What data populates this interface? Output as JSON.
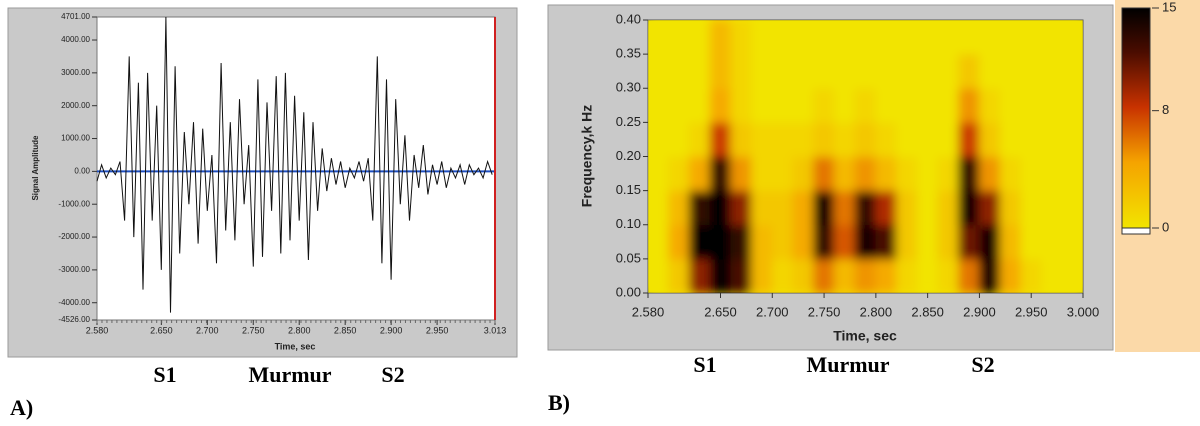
{
  "chart_data": [
    {
      "type": "line",
      "panel_label": "A)",
      "xlabel": "Time, sec",
      "ylabel": "Signal Amplitude",
      "annotations": [
        "S1",
        "Murmur",
        "S2"
      ],
      "color": "#111111",
      "zero_line_color": "#1f4fc0",
      "grid": false,
      "xlim": [
        2.58,
        3.013
      ],
      "xticks": [
        {
          "value": 2.58,
          "label": "2.580"
        },
        {
          "value": 2.65,
          "label": "2.650"
        },
        {
          "value": 2.7,
          "label": "2.700"
        },
        {
          "value": 2.75,
          "label": "2.750"
        },
        {
          "value": 2.8,
          "label": "2.800"
        },
        {
          "value": 2.85,
          "label": "2.850"
        },
        {
          "value": 2.9,
          "label": "2.900"
        },
        {
          "value": 2.95,
          "label": "2.950"
        },
        3.013
      ],
      "ylim": [
        -4526,
        4701
      ],
      "yticks": [
        {
          "value": 4701,
          "label": "4701.00"
        },
        {
          "value": 4000,
          "label": "4000.00"
        },
        {
          "value": 3000,
          "label": "3000.00"
        },
        {
          "value": 2000,
          "label": "2000.00"
        },
        {
          "value": 1000,
          "label": "1000.00"
        },
        {
          "value": 0,
          "label": "0.00"
        },
        {
          "value": -1000,
          "label": "-1000.00"
        },
        {
          "value": -2000,
          "label": "-2000.00"
        },
        {
          "value": -3000,
          "label": "-3000.00"
        },
        {
          "value": -4000,
          "label": "-4000.00"
        },
        {
          "value": -4526,
          "label": "-4526.00"
        }
      ],
      "x": [
        2.58,
        2.585,
        2.59,
        2.595,
        2.6,
        2.605,
        2.61,
        2.615,
        2.62,
        2.625,
        2.63,
        2.635,
        2.64,
        2.645,
        2.65,
        2.655,
        2.66,
        2.665,
        2.67,
        2.675,
        2.68,
        2.685,
        2.69,
        2.695,
        2.7,
        2.705,
        2.71,
        2.715,
        2.72,
        2.725,
        2.73,
        2.735,
        2.74,
        2.745,
        2.75,
        2.755,
        2.76,
        2.765,
        2.77,
        2.775,
        2.78,
        2.785,
        2.79,
        2.795,
        2.8,
        2.805,
        2.81,
        2.815,
        2.82,
        2.825,
        2.83,
        2.835,
        2.84,
        2.845,
        2.85,
        2.855,
        2.86,
        2.865,
        2.87,
        2.875,
        2.88,
        2.885,
        2.89,
        2.895,
        2.9,
        2.905,
        2.91,
        2.915,
        2.92,
        2.925,
        2.93,
        2.935,
        2.94,
        2.945,
        2.95,
        2.955,
        2.96,
        2.965,
        2.97,
        2.975,
        2.98,
        2.985,
        2.99,
        2.995,
        3.0,
        3.005,
        3.01
      ],
      "values": [
        -300,
        200,
        -200,
        100,
        -100,
        300,
        -1500,
        3500,
        -2000,
        2700,
        -3600,
        3000,
        -1500,
        2000,
        -3000,
        4700,
        -4300,
        3200,
        -2500,
        1200,
        -1000,
        1500,
        -2200,
        1300,
        -1200,
        500,
        -2800,
        3300,
        -1800,
        1500,
        -2100,
        2200,
        -1000,
        800,
        -2900,
        2800,
        -2600,
        2100,
        -1200,
        2900,
        -2500,
        3000,
        -2100,
        2300,
        -1500,
        1800,
        -2700,
        1500,
        -1200,
        700,
        -600,
        400,
        -400,
        300,
        -500,
        100,
        -200,
        300,
        -300,
        400,
        -1500,
        3500,
        -2800,
        2800,
        -3300,
        2200,
        -1000,
        1100,
        -1500,
        500,
        -500,
        800,
        -700,
        200,
        -400,
        300,
        -500,
        100,
        -200,
        200,
        -400,
        200,
        -100,
        100,
        -200,
        300,
        -100
      ]
    },
    {
      "type": "heatmap",
      "panel_label": "B)",
      "xlabel": "Time, sec",
      "ylabel": "Frequency,k Hz",
      "annotations": [
        "S1",
        "Murmur",
        "S2"
      ],
      "xlim": [
        2.58,
        3.0
      ],
      "xticks": [
        {
          "value": 2.58,
          "label": "2.580"
        },
        {
          "value": 2.65,
          "label": "2.650"
        },
        {
          "value": 2.7,
          "label": "2.700"
        },
        {
          "value": 2.75,
          "label": "2.750"
        },
        {
          "value": 2.8,
          "label": "2.800"
        },
        {
          "value": 2.85,
          "label": "2.850"
        },
        {
          "value": 2.9,
          "label": "2.900"
        },
        {
          "value": 2.95,
          "label": "2.950"
        },
        {
          "value": 3.0,
          "label": "3.000"
        }
      ],
      "ylim": [
        0,
        0.4
      ],
      "yticks": [
        {
          "value": 0,
          "label": "0.00"
        },
        {
          "value": 0.05,
          "label": "0.05"
        },
        {
          "value": 0.1,
          "label": "0.10"
        },
        {
          "value": 0.15,
          "label": "0.15"
        },
        {
          "value": 0.2,
          "label": "0.20"
        },
        {
          "value": 0.25,
          "label": "0.25"
        },
        {
          "value": 0.3,
          "label": "0.30"
        },
        {
          "value": 0.35,
          "label": "0.35"
        },
        {
          "value": 0.4,
          "label": "0.40"
        }
      ],
      "zlim": [
        0,
        15
      ],
      "zticks": [
        15,
        8,
        0
      ],
      "x": [
        2.59,
        2.61,
        2.63,
        2.65,
        2.67,
        2.69,
        2.71,
        2.73,
        2.75,
        2.77,
        2.79,
        2.81,
        2.83,
        2.85,
        2.87,
        2.89,
        2.91,
        2.93,
        2.95,
        2.97,
        2.99
      ],
      "y": [
        0.025,
        0.075,
        0.125,
        0.175,
        0.225,
        0.275,
        0.325,
        0.375
      ],
      "z": [
        [
          0,
          2,
          10,
          15,
          12,
          3,
          1,
          2,
          6,
          3,
          5,
          4,
          1,
          0,
          1,
          6,
          14,
          4,
          1,
          0,
          0
        ],
        [
          0,
          4,
          15,
          15,
          13,
          3,
          2,
          4,
          13,
          7,
          14,
          12,
          2,
          0,
          2,
          11,
          14,
          3,
          0,
          0,
          0
        ],
        [
          0,
          3,
          13,
          15,
          10,
          2,
          2,
          4,
          14,
          6,
          13,
          9,
          2,
          0,
          2,
          14,
          10,
          2,
          0,
          0,
          0
        ],
        [
          0,
          1,
          4,
          13,
          5,
          1,
          1,
          2,
          6,
          3,
          5,
          3,
          1,
          0,
          1,
          13,
          5,
          1,
          0,
          0,
          0
        ],
        [
          0,
          0,
          1,
          8,
          2,
          1,
          1,
          1,
          2,
          1,
          2,
          1,
          0,
          0,
          0,
          8,
          2,
          0,
          0,
          0,
          0
        ],
        [
          0,
          0,
          0,
          4,
          1,
          0,
          0,
          0,
          1,
          0,
          1,
          0,
          0,
          0,
          0,
          5,
          1,
          0,
          0,
          0,
          0
        ],
        [
          0,
          0,
          0,
          3,
          1,
          0,
          0,
          0,
          0,
          0,
          0,
          0,
          0,
          0,
          0,
          2,
          0,
          0,
          0,
          0,
          0
        ],
        [
          0,
          0,
          0,
          3,
          1,
          0,
          0,
          0,
          0,
          0,
          0,
          0,
          0,
          0,
          0,
          0,
          0,
          0,
          0,
          0,
          0
        ]
      ]
    }
  ]
}
